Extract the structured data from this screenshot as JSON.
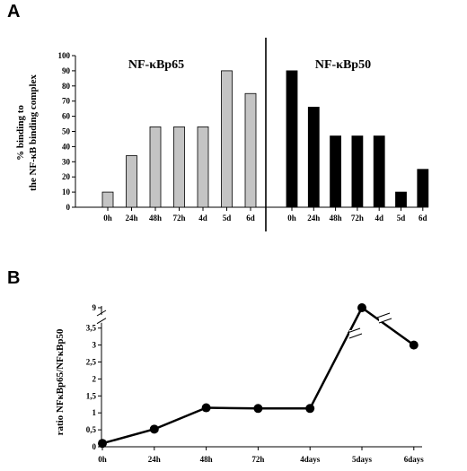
{
  "panels": {
    "a_letter": "A",
    "b_letter": "B"
  },
  "chart_data": [
    {
      "type": "bar",
      "panel": "A",
      "ylabel_line1": "% binding to",
      "ylabel_line2": "the NF-κB binding complex",
      "ylim": [
        0,
        100
      ],
      "yticks": [
        "0",
        "10",
        "20",
        "30",
        "40",
        "50",
        "60",
        "70",
        "80",
        "90",
        "100"
      ],
      "series": [
        {
          "name": "NF-κBp65",
          "categories": [
            "0h",
            "24h",
            "48h",
            "72h",
            "4d",
            "5d",
            "6d"
          ],
          "values": [
            10,
            34,
            53,
            53,
            53,
            90,
            75
          ],
          "color": "#c4c4c4"
        },
        {
          "name": "NF-κBp50",
          "categories": [
            "0h",
            "24h",
            "48h",
            "72h",
            "4d",
            "5d",
            "6d"
          ],
          "values": [
            90,
            66,
            47,
            47,
            47,
            10,
            25
          ],
          "color": "#000000"
        }
      ]
    },
    {
      "type": "line",
      "panel": "B",
      "ylabel": "ratio NFκBp65/NFκBp50",
      "axis_break": true,
      "yticks": [
        "0",
        "0,5",
        "1",
        "1,5",
        "2",
        "2,5",
        "3",
        "3,5",
        "9"
      ],
      "categories": [
        "0h",
        "24h",
        "48h",
        "72h",
        "4days",
        "5days",
        "6days"
      ],
      "values": [
        0.1,
        0.52,
        1.15,
        1.13,
        1.13,
        9.0,
        3.0
      ],
      "color": "#000000"
    }
  ]
}
